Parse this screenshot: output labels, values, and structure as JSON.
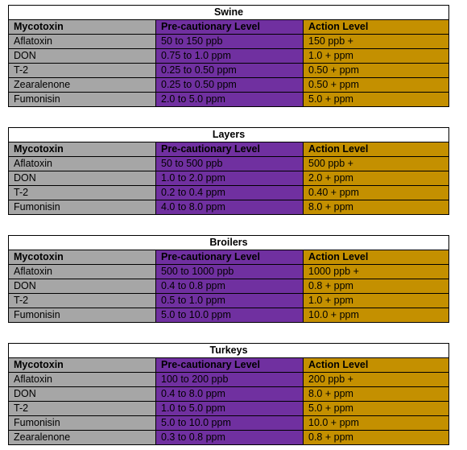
{
  "tables": [
    {
      "title": "Swine",
      "headers": [
        "Mycotoxin",
        "Pre-cautionary Level",
        "Action Level"
      ],
      "rows": [
        [
          "Aflatoxin",
          "50 to 150 ppb",
          "150 ppb +"
        ],
        [
          "DON",
          "0.75 to 1.0 ppm",
          "1.0 + ppm"
        ],
        [
          "T-2",
          "0.25 to 0.50 ppm",
          "0.50 + ppm"
        ],
        [
          "Zearalenone",
          "0.25 to 0.50 ppm",
          "0.50 + ppm"
        ],
        [
          "Fumonisin",
          "2.0 to 5.0 ppm",
          "5.0 + ppm"
        ]
      ]
    },
    {
      "title": "Layers",
      "headers": [
        "Mycotoxin",
        "Pre-cautionary Level",
        "Action Level"
      ],
      "rows": [
        [
          "Aflatoxin",
          "50 to 500 ppb",
          "500 ppb +"
        ],
        [
          "DON",
          "1.0 to 2.0 ppm",
          "2.0 + ppm"
        ],
        [
          "T-2",
          "0.2 to 0.4 ppm",
          "0.40 + ppm"
        ],
        [
          "Fumonisin",
          "4.0 to 8.0 ppm",
          "8.0 + ppm"
        ]
      ]
    },
    {
      "title": "Broilers",
      "headers": [
        "Mycotoxin",
        "Pre-cautionary Level",
        "Action Level"
      ],
      "rows": [
        [
          "Aflatoxin",
          "500 to 1000 ppb",
          "1000 ppb +"
        ],
        [
          "DON",
          "0.4 to 0.8 ppm",
          "0.8 + ppm"
        ],
        [
          "T-2",
          "0.5 to 1.0 ppm",
          "1.0 + ppm"
        ],
        [
          "Fumonisin",
          "5.0 to 10.0 ppm",
          "10.0 + ppm"
        ]
      ]
    },
    {
      "title": "Turkeys",
      "headers": [
        "Mycotoxin",
        "Pre-cautionary Level",
        "Action Level"
      ],
      "rows": [
        [
          "Aflatoxin",
          "100 to 200 ppb",
          "200 ppb +"
        ],
        [
          "DON",
          "0.4 to 8.0 ppm",
          "8.0 + ppm"
        ],
        [
          "T-2",
          "1.0 to 5.0 ppm",
          "5.0 + ppm"
        ],
        [
          "Fumonisin",
          "5.0 to 10.0 ppm",
          "10.0 + ppm"
        ],
        [
          "Zearalenone",
          "0.3 to 0.8 ppm",
          "0.8 + ppm"
        ]
      ]
    }
  ],
  "colors": {
    "mycotoxin_column": "#a6a6a6",
    "precautionary_column": "#7030a0",
    "action_column": "#c49000",
    "title_row": "#ffffff"
  }
}
